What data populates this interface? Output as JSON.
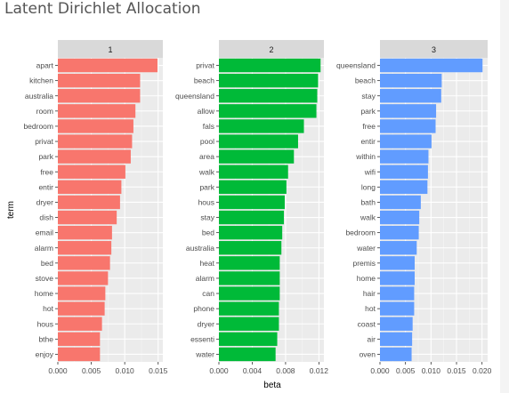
{
  "page": {
    "title": "Latent Dirichlet Allocation"
  },
  "chart_data": {
    "type": "bar",
    "orientation": "horizontal",
    "xlabel": "beta",
    "ylabel": "term",
    "grid": true,
    "facets": [
      {
        "label": "1",
        "color": "#F8766D",
        "xlim": [
          0,
          0.0157
        ],
        "ticks": [
          0,
          0.005,
          0.01,
          0.015
        ],
        "tick_labels": [
          "0.000",
          "0.005",
          "0.010",
          "0.015"
        ],
        "terms": [
          "apart",
          "kitchen",
          "australia",
          "room",
          "bedroom",
          "privat",
          "park",
          "free",
          "entir",
          "dryer",
          "dish",
          "email",
          "alarm",
          "bed",
          "stove",
          "home",
          "hot",
          "hous",
          "bthe",
          "enjoy"
        ],
        "values": [
          0.0149,
          0.0123,
          0.0123,
          0.0116,
          0.0113,
          0.0111,
          0.0109,
          0.0101,
          0.0095,
          0.0093,
          0.0088,
          0.0081,
          0.008,
          0.0078,
          0.0075,
          0.0071,
          0.007,
          0.0066,
          0.0063,
          0.0063
        ]
      },
      {
        "label": "2",
        "color": "#00BA38",
        "xlim": [
          0,
          0.0126
        ],
        "ticks": [
          0,
          0.004,
          0.008,
          0.012
        ],
        "tick_labels": [
          "0.000",
          "0.004",
          "0.008",
          "0.012"
        ],
        "terms": [
          "privat",
          "beach",
          "queensland",
          "allow",
          "fals",
          "pool",
          "area",
          "walk",
          "park",
          "hous",
          "stay",
          "bed",
          "australia",
          "heat",
          "alarm",
          "can",
          "phone",
          "dryer",
          "essenti",
          "water"
        ],
        "values": [
          0.0122,
          0.0119,
          0.0118,
          0.0117,
          0.0102,
          0.0095,
          0.009,
          0.0083,
          0.0081,
          0.0079,
          0.0078,
          0.0076,
          0.0075,
          0.0073,
          0.0073,
          0.0073,
          0.0072,
          0.0072,
          0.007,
          0.0068
        ]
      },
      {
        "label": "3",
        "color": "#619CFF",
        "xlim": [
          0,
          0.0211
        ],
        "ticks": [
          0,
          0.005,
          0.01,
          0.015,
          0.02
        ],
        "tick_labels": [
          "0.000",
          "0.005",
          "0.010",
          "0.015",
          "0.020"
        ],
        "terms": [
          "queensland",
          "beach",
          "stay",
          "park",
          "free",
          "entir",
          "within",
          "wifi",
          "long",
          "bath",
          "walk",
          "bedroom",
          "water",
          "premis",
          "home",
          "hair",
          "hot",
          "coast",
          "air",
          "oven"
        ],
        "values": [
          0.0201,
          0.0121,
          0.012,
          0.011,
          0.0109,
          0.0101,
          0.0095,
          0.0094,
          0.0093,
          0.008,
          0.0077,
          0.0076,
          0.0072,
          0.0068,
          0.0068,
          0.0067,
          0.0067,
          0.0064,
          0.0063,
          0.0062
        ]
      }
    ]
  }
}
